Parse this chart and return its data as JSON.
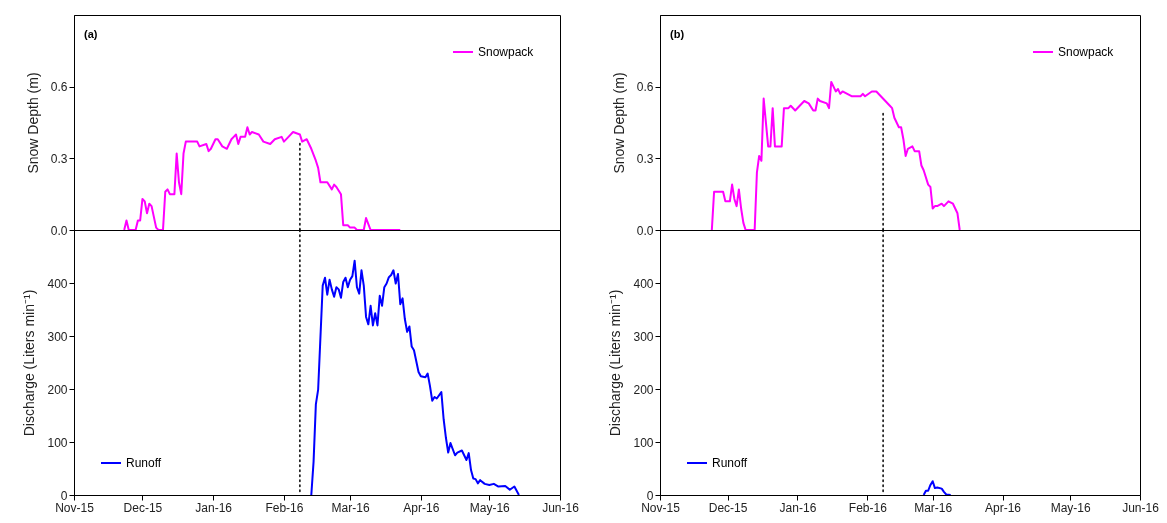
{
  "chart_data": [
    {
      "type": "line",
      "ylabel": "Snow Depth (m)",
      "annotations": [
        "(a)"
      ],
      "legend": "top right",
      "tick_labels": "y",
      "xlim": [
        "2015-11-01",
        "2016-06-01"
      ],
      "ylim": [
        0,
        0.9
      ],
      "yticks": [
        {
          "value": 0,
          "label": "0.0"
        },
        0.3,
        0.6
      ],
      "series": [
        {
          "name": "Snowpack",
          "color": "#ff00ff",
          "x": [
            "2015-11-23",
            "2015-11-24",
            "2015-11-25",
            "2015-11-28",
            "2015-11-29",
            "2015-11-30",
            "2015-12-01",
            "2015-12-02",
            "2015-12-03",
            "2015-12-04",
            "2015-12-05",
            "2015-12-07",
            "2015-12-08",
            "2015-12-10",
            "2015-12-11",
            "2015-12-12",
            "2015-12-13",
            "2015-12-15",
            "2015-12-16",
            "2015-12-17",
            "2015-12-18",
            "2015-12-19",
            "2015-12-20",
            "2015-12-25",
            "2015-12-26",
            "2015-12-29",
            "2015-12-30",
            "2015-12-31",
            "2016-01-02",
            "2016-01-03",
            "2016-01-05",
            "2016-01-07",
            "2016-01-09",
            "2016-01-10",
            "2016-01-11",
            "2016-01-12",
            "2016-01-13",
            "2016-01-15",
            "2016-01-16",
            "2016-01-17",
            "2016-01-18",
            "2016-01-21",
            "2016-01-23",
            "2016-01-26",
            "2016-01-28",
            "2016-01-31",
            "2016-02-01",
            "2016-02-03",
            "2016-02-05",
            "2016-02-08",
            "2016-02-09",
            "2016-02-11",
            "2016-02-13",
            "2016-02-15",
            "2016-02-16",
            "2016-02-17",
            "2016-02-20",
            "2016-02-22",
            "2016-02-23",
            "2016-02-24",
            "2016-02-26",
            "2016-02-27",
            "2016-02-29",
            "2016-03-01",
            "2016-03-03",
            "2016-03-04",
            "2016-03-07",
            "2016-03-08",
            "2016-03-10",
            "2016-03-23"
          ],
          "values": [
            0,
            0.04,
            0,
            0,
            0.04,
            0.04,
            0.13,
            0.12,
            0.07,
            0.11,
            0.1,
            0.01,
            0,
            0,
            0.16,
            0.17,
            0.15,
            0.15,
            0.32,
            0.2,
            0.15,
            0.32,
            0.37,
            0.37,
            0.35,
            0.36,
            0.33,
            0.34,
            0.38,
            0.38,
            0.35,
            0.34,
            0.38,
            0.39,
            0.4,
            0.36,
            0.39,
            0.39,
            0.43,
            0.4,
            0.41,
            0.4,
            0.37,
            0.36,
            0.38,
            0.39,
            0.37,
            0.39,
            0.41,
            0.4,
            0.37,
            0.38,
            0.34,
            0.29,
            0.26,
            0.2,
            0.2,
            0.17,
            0.19,
            0.18,
            0.15,
            0.02,
            0.02,
            0.01,
            0.01,
            0,
            0,
            0.05,
            0,
            0
          ]
        },
        {
          "color": "#000000",
          "line_style": "dotted",
          "x": [
            "2016-02-08",
            "2016-02-08"
          ],
          "values": [
            0,
            0.37
          ]
        }
      ]
    },
    {
      "type": "line",
      "ylabel": "Discharge (Liters min⁻¹)",
      "legend": "bottom left",
      "xlim": [
        "2015-11-01",
        "2016-06-01"
      ],
      "ylim": [
        0,
        500
      ],
      "yticks": [
        0,
        100,
        200,
        300,
        400
      ],
      "xticks": [
        {
          "value": "2015-11-01",
          "label": "Nov-15"
        },
        {
          "value": "2015-12-01",
          "label": "Dec-15"
        },
        {
          "value": "2016-01-01",
          "label": "Jan-16"
        },
        {
          "value": "2016-02-01",
          "label": "Feb-16"
        },
        {
          "value": "2016-03-01",
          "label": "Mar-16"
        },
        {
          "value": "2016-04-01",
          "label": "Apr-16"
        },
        {
          "value": "2016-05-01",
          "label": "May-16"
        },
        {
          "value": "2016-06-01",
          "label": "Jun-16"
        }
      ],
      "ref_lines": [
        {
          "axis": "x",
          "value": "2016-02-08",
          "color": "#000000",
          "line_style": "dotted"
        }
      ],
      "series": [
        {
          "name": "Runoff",
          "color": "#0000ff",
          "x": [
            "2016-02-13",
            "2016-02-14",
            "2016-02-15",
            "2016-02-16",
            "2016-02-18",
            "2016-02-19",
            "2016-02-20",
            "2016-02-21",
            "2016-02-22",
            "2016-02-23",
            "2016-02-24",
            "2016-02-25",
            "2016-02-26",
            "2016-02-27",
            "2016-02-28",
            "2016-02-29",
            "2016-03-01",
            "2016-03-02",
            "2016-03-03",
            "2016-03-04",
            "2016-03-05",
            "2016-03-06",
            "2016-03-07",
            "2016-03-08",
            "2016-03-09",
            "2016-03-10",
            "2016-03-11",
            "2016-03-12",
            "2016-03-13",
            "2016-03-14",
            "2016-03-15",
            "2016-03-16",
            "2016-03-17",
            "2016-03-18",
            "2016-03-19",
            "2016-03-20",
            "2016-03-21",
            "2016-03-22",
            "2016-03-23",
            "2016-03-24",
            "2016-03-25",
            "2016-03-26",
            "2016-03-27",
            "2016-03-28",
            "2016-03-29",
            "2016-03-31",
            "2016-04-01",
            "2016-04-03",
            "2016-04-04",
            "2016-04-05",
            "2016-04-06",
            "2016-04-07",
            "2016-04-08",
            "2016-04-10",
            "2016-04-11",
            "2016-04-12",
            "2016-04-13",
            "2016-04-14",
            "2016-04-16",
            "2016-04-17",
            "2016-04-19",
            "2016-04-21",
            "2016-04-22",
            "2016-04-23",
            "2016-04-24",
            "2016-04-25",
            "2016-04-26",
            "2016-04-27",
            "2016-04-29",
            "2016-05-01",
            "2016-05-03",
            "2016-05-05",
            "2016-05-08",
            "2016-05-10",
            "2016-05-12",
            "2016-05-14"
          ],
          "values": [
            0,
            63,
            171,
            199,
            395,
            410,
            378,
            406,
            388,
            374,
            392,
            388,
            372,
            402,
            410,
            392,
            406,
            413,
            442,
            392,
            380,
            424,
            395,
            336,
            322,
            357,
            320,
            343,
            320,
            376,
            357,
            392,
            399,
            411,
            415,
            424,
            399,
            417,
            360,
            371,
            332,
            308,
            318,
            280,
            273,
            232,
            224,
            222,
            229,
            206,
            178,
            185,
            182,
            194,
            143,
            108,
            80,
            98,
            75,
            80,
            84,
            66,
            79,
            47,
            31,
            30,
            22,
            28,
            21,
            19,
            21,
            16,
            17,
            10,
            16,
            0
          ]
        }
      ]
    },
    {
      "type": "line",
      "ylabel": "Snow Depth (m)",
      "annotations": [
        "(b)"
      ],
      "legend": "top right",
      "tick_labels": "y",
      "xlim": [
        "2015-11-01",
        "2016-06-01"
      ],
      "ylim": [
        0,
        0.9
      ],
      "yticks": [
        {
          "value": 0,
          "label": "0.0"
        },
        0.3,
        0.6
      ],
      "series": [
        {
          "name": "Snowpack",
          "color": "#ff00ff",
          "x": [
            "2015-11-24",
            "2015-11-25",
            "2015-11-29",
            "2015-11-30",
            "2015-12-02",
            "2015-12-03",
            "2015-12-04",
            "2015-12-05",
            "2015-12-06",
            "2015-12-07",
            "2015-12-08",
            "2015-12-09",
            "2015-12-13",
            "2015-12-14",
            "2015-12-15",
            "2015-12-16",
            "2015-12-17",
            "2015-12-19",
            "2015-12-20",
            "2015-12-21",
            "2015-12-22",
            "2015-12-25",
            "2015-12-26",
            "2015-12-28",
            "2015-12-29",
            "2015-12-31",
            "2016-01-02",
            "2016-01-04",
            "2016-01-06",
            "2016-01-08",
            "2016-01-09",
            "2016-01-10",
            "2016-01-11",
            "2016-01-14",
            "2016-01-15",
            "2016-01-16",
            "2016-01-18",
            "2016-01-19",
            "2016-01-20",
            "2016-01-21",
            "2016-01-25",
            "2016-01-29",
            "2016-01-30",
            "2016-01-31",
            "2016-02-03",
            "2016-02-05",
            "2016-02-07",
            "2016-02-09",
            "2016-02-11",
            "2016-02-12",
            "2016-02-13",
            "2016-02-15",
            "2016-02-16",
            "2016-02-17",
            "2016-02-18",
            "2016-02-19",
            "2016-02-21",
            "2016-02-22",
            "2016-02-24",
            "2016-02-25",
            "2016-02-26",
            "2016-02-28",
            "2016-02-29",
            "2016-03-01",
            "2016-03-02",
            "2016-03-03",
            "2016-03-05",
            "2016-03-06",
            "2016-03-08",
            "2016-03-10",
            "2016-03-12",
            "2016-03-13"
          ],
          "values": [
            0,
            0.16,
            0.16,
            0.12,
            0.12,
            0.19,
            0.13,
            0.1,
            0.17,
            0.09,
            0.03,
            0,
            0,
            0.24,
            0.31,
            0.29,
            0.55,
            0.35,
            0.35,
            0.51,
            0.35,
            0.35,
            0.51,
            0.51,
            0.52,
            0.5,
            0.52,
            0.54,
            0.53,
            0.5,
            0.5,
            0.55,
            0.54,
            0.53,
            0.51,
            0.62,
            0.58,
            0.59,
            0.57,
            0.58,
            0.56,
            0.56,
            0.57,
            0.56,
            0.58,
            0.58,
            0.56,
            0.54,
            0.52,
            0.51,
            0.47,
            0.43,
            0.43,
            0.38,
            0.31,
            0.34,
            0.35,
            0.33,
            0.33,
            0.27,
            0.25,
            0.19,
            0.18,
            0.09,
            0.1,
            0.1,
            0.11,
            0.1,
            0.12,
            0.11,
            0.07,
            0
          ]
        },
        {
          "color": "#000000",
          "line_style": "dotted",
          "x": [
            "2016-02-08",
            "2016-02-08"
          ],
          "values": [
            0,
            0.49
          ]
        }
      ]
    },
    {
      "type": "line",
      "ylabel": "Discharge (Liters min⁻¹)",
      "legend": "bottom left",
      "xlim": [
        "2015-11-01",
        "2016-06-01"
      ],
      "ylim": [
        0,
        500
      ],
      "yticks": [
        0,
        100,
        200,
        300,
        400
      ],
      "xticks": [
        {
          "value": "2015-11-01",
          "label": "Nov-15"
        },
        {
          "value": "2015-12-01",
          "label": "Dec-15"
        },
        {
          "value": "2016-01-01",
          "label": "Jan-16"
        },
        {
          "value": "2016-02-01",
          "label": "Feb-16"
        },
        {
          "value": "2016-03-01",
          "label": "Mar-16"
        },
        {
          "value": "2016-04-01",
          "label": "Apr-16"
        },
        {
          "value": "2016-05-01",
          "label": "May-16"
        },
        {
          "value": "2016-06-01",
          "label": "Jun-16"
        }
      ],
      "ref_lines": [
        {
          "axis": "x",
          "value": "2016-02-08",
          "color": "#000000",
          "line_style": "dotted"
        }
      ],
      "series": [
        {
          "name": "Runoff",
          "color": "#0000ff",
          "x": [
            "2016-02-26",
            "2016-02-27",
            "2016-02-28",
            "2016-02-29",
            "2016-03-01",
            "2016-03-02",
            "2016-03-03",
            "2016-03-05",
            "2016-03-06",
            "2016-03-07",
            "2016-03-09"
          ],
          "values": [
            0,
            8,
            8,
            19,
            26,
            13,
            14,
            12,
            6,
            1,
            0
          ]
        }
      ]
    }
  ]
}
